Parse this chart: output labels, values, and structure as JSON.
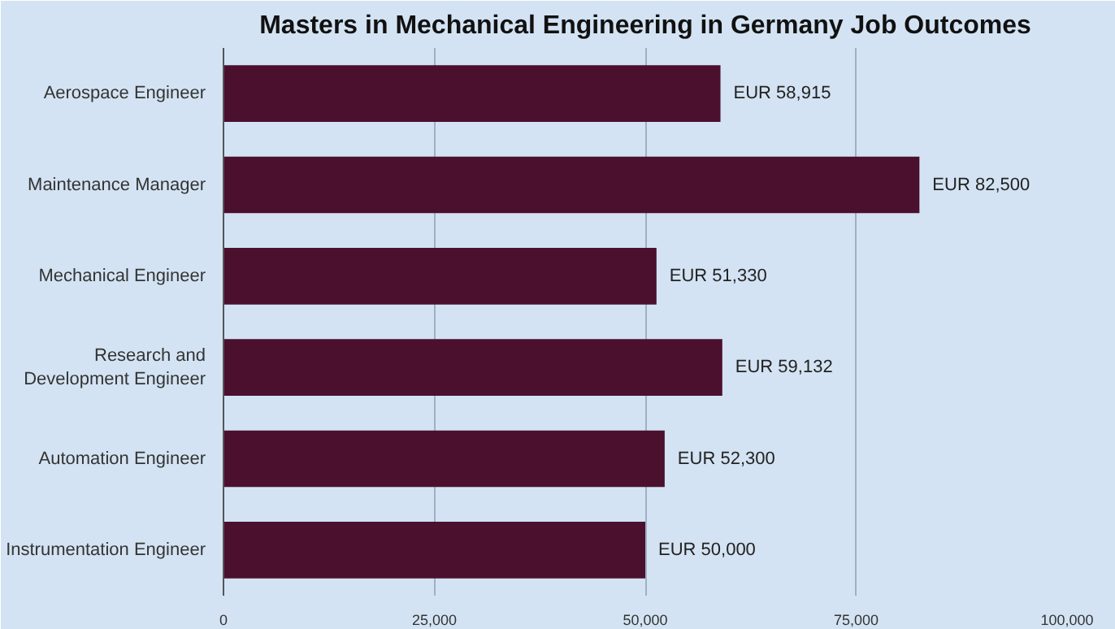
{
  "chart_data": {
    "type": "bar",
    "orientation": "horizontal",
    "title": "Masters in Mechanical Engineering in Germany Job Outcomes",
    "categories": [
      "Aerospace Engineer",
      "Maintenance Manager",
      "Mechanical Engineer",
      "Research and Development Engineer",
      "Automation Engineer",
      "Instrumentation Engineer"
    ],
    "values": [
      58915,
      82500,
      51330,
      59132,
      52300,
      50000
    ],
    "value_labels": [
      "EUR 58,915",
      "EUR 82,500",
      "EUR 51,330",
      "EUR 59,132",
      "EUR 52,300",
      "EUR 50,000"
    ],
    "color": "#4b102e",
    "xlim": [
      0,
      100000
    ],
    "xticks": [
      0,
      {
        "value": 25000,
        "label": "25,000"
      },
      {
        "value": 50000,
        "label": "50,000"
      },
      {
        "value": 75000,
        "label": "75,000"
      },
      {
        "value": 100000,
        "label": "100,000"
      }
    ],
    "grid": "x"
  }
}
